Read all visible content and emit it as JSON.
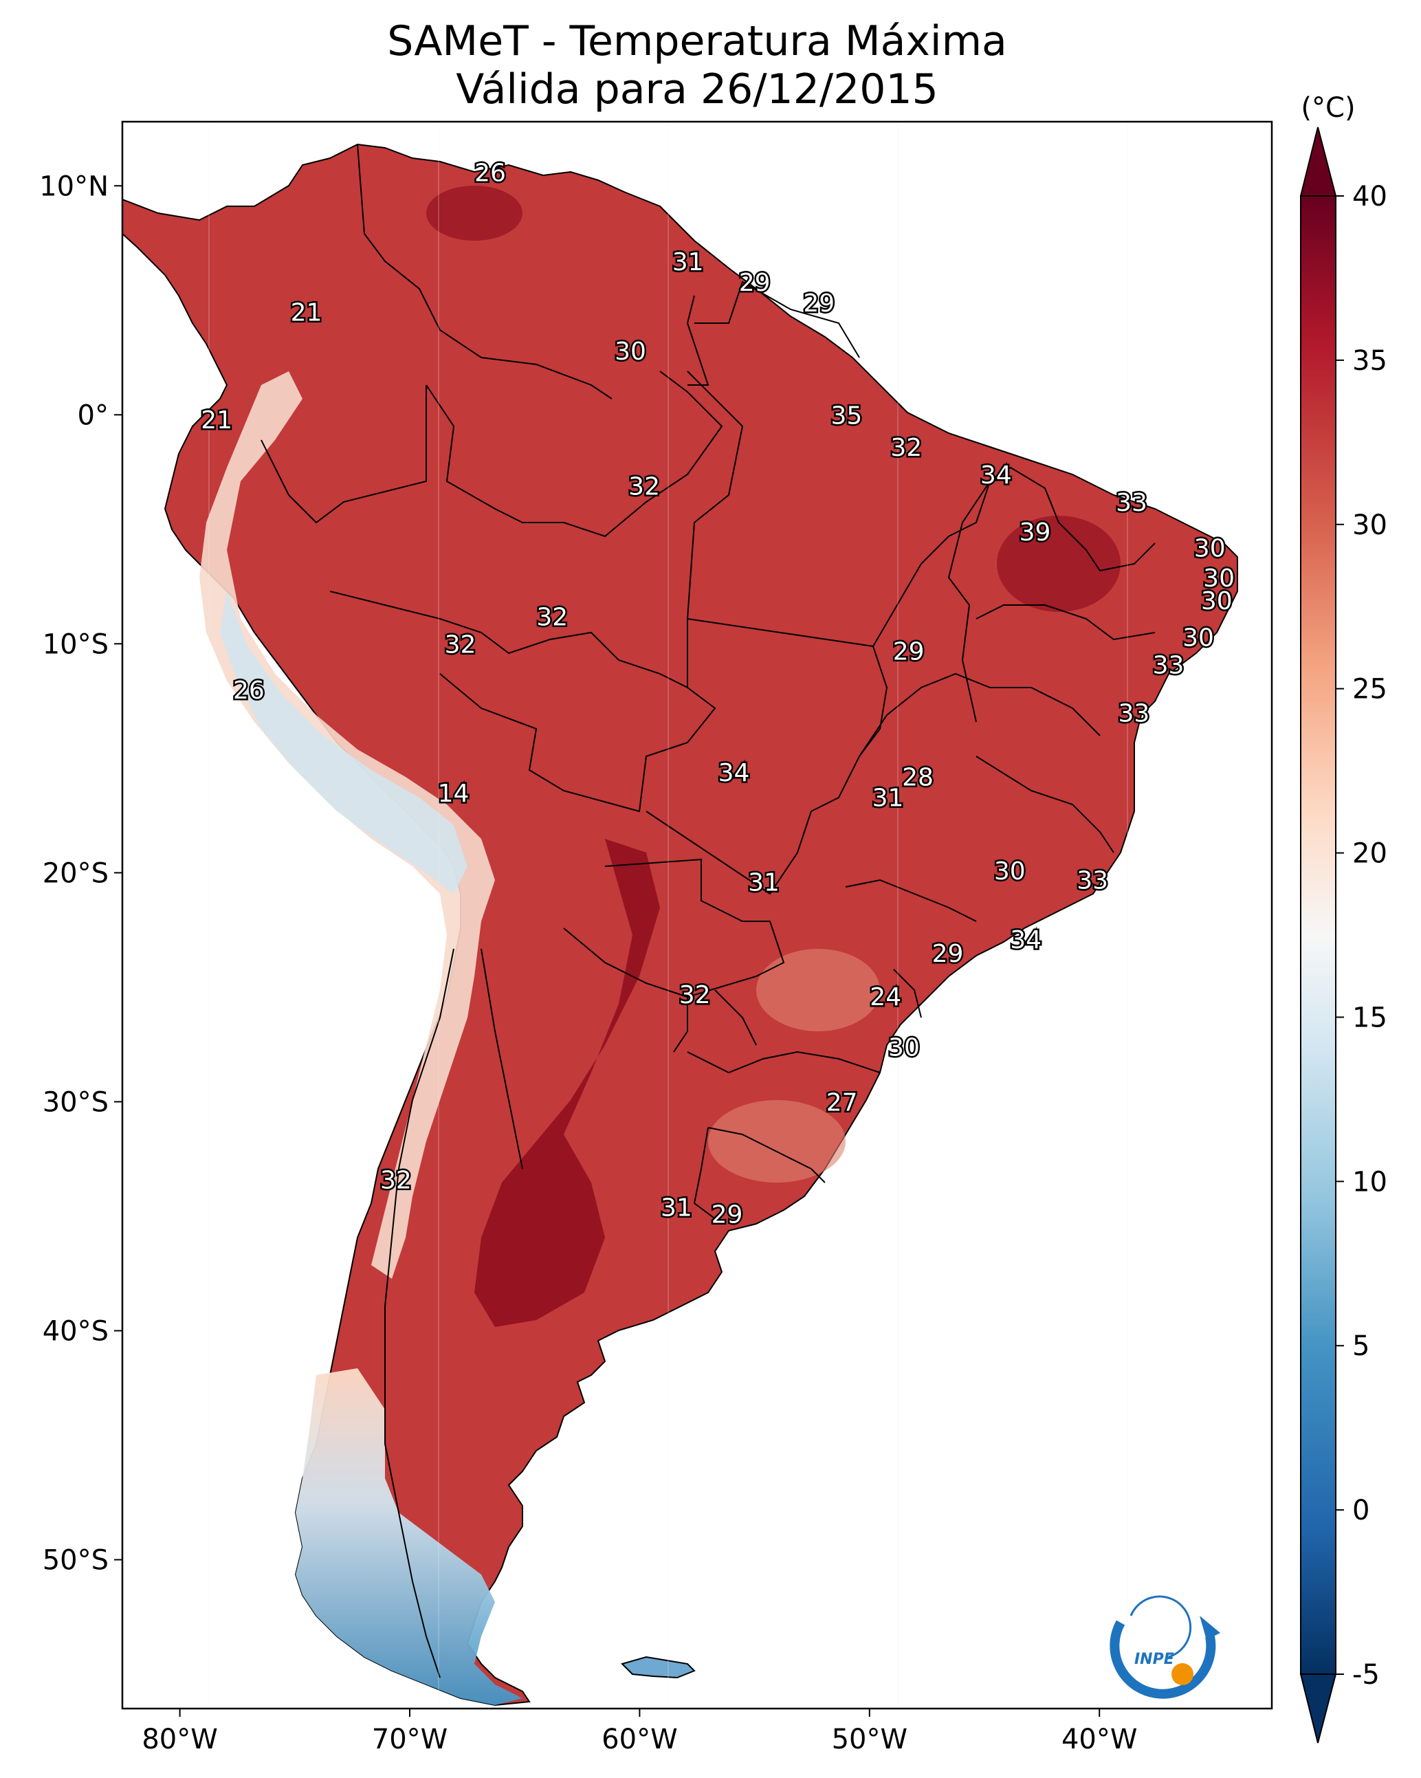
{
  "map": {
    "title_line1": "SAMeT - Temperatura Máxima",
    "title_line2": "Válida para 26/12/2015",
    "lon_labels": [
      "80°W",
      "70°W",
      "60°W",
      "50°W",
      "40°W"
    ],
    "lat_labels": [
      "10°N",
      "0°",
      "10°S",
      "20°S",
      "30°S",
      "40°S",
      "50°S"
    ],
    "extent": {
      "lon_min": -82.5,
      "lon_max": -32.5,
      "lat_min": -56.5,
      "lat_max": 12.8
    },
    "station_values": [
      {
        "lon": -66.5,
        "lat": 10.6,
        "value": "26"
      },
      {
        "lon": -74.5,
        "lat": 4.5,
        "value": "21"
      },
      {
        "lon": -57.9,
        "lat": 6.7,
        "value": "31"
      },
      {
        "lon": -55.0,
        "lat": 5.8,
        "value": "29"
      },
      {
        "lon": -52.2,
        "lat": 4.9,
        "value": "29"
      },
      {
        "lon": -60.4,
        "lat": 2.8,
        "value": "30"
      },
      {
        "lon": -78.4,
        "lat": -0.2,
        "value": "21"
      },
      {
        "lon": -51.0,
        "lat": 0.0,
        "value": "35"
      },
      {
        "lon": -48.4,
        "lat": -1.4,
        "value": "32"
      },
      {
        "lon": -59.8,
        "lat": -3.1,
        "value": "32"
      },
      {
        "lon": -44.5,
        "lat": -2.6,
        "value": "34"
      },
      {
        "lon": -38.6,
        "lat": -3.8,
        "value": "33"
      },
      {
        "lon": -42.8,
        "lat": -5.1,
        "value": "39"
      },
      {
        "lon": -35.2,
        "lat": -5.8,
        "value": "30"
      },
      {
        "lon": -34.8,
        "lat": -7.1,
        "value": "30"
      },
      {
        "lon": -34.9,
        "lat": -8.1,
        "value": "30"
      },
      {
        "lon": -63.8,
        "lat": -8.8,
        "value": "32"
      },
      {
        "lon": -67.8,
        "lat": -10.0,
        "value": "32"
      },
      {
        "lon": -48.3,
        "lat": -10.3,
        "value": "29"
      },
      {
        "lon": -35.7,
        "lat": -9.7,
        "value": "30"
      },
      {
        "lon": -37.0,
        "lat": -10.9,
        "value": "33"
      },
      {
        "lon": -38.5,
        "lat": -13.0,
        "value": "33"
      },
      {
        "lon": -77.0,
        "lat": -12.0,
        "value": "26"
      },
      {
        "lon": -55.9,
        "lat": -15.6,
        "value": "34"
      },
      {
        "lon": -47.9,
        "lat": -15.8,
        "value": "28"
      },
      {
        "lon": -49.2,
        "lat": -16.7,
        "value": "31"
      },
      {
        "lon": -68.1,
        "lat": -16.5,
        "value": "14"
      },
      {
        "lon": -43.9,
        "lat": -19.9,
        "value": "30"
      },
      {
        "lon": -40.3,
        "lat": -20.3,
        "value": "33"
      },
      {
        "lon": -54.6,
        "lat": -20.4,
        "value": "31"
      },
      {
        "lon": -43.2,
        "lat": -22.9,
        "value": "34"
      },
      {
        "lon": -46.6,
        "lat": -23.5,
        "value": "29"
      },
      {
        "lon": -57.6,
        "lat": -25.3,
        "value": "32"
      },
      {
        "lon": -49.3,
        "lat": -25.4,
        "value": "24"
      },
      {
        "lon": -48.5,
        "lat": -27.6,
        "value": "30"
      },
      {
        "lon": -51.2,
        "lat": -30.0,
        "value": "27"
      },
      {
        "lon": -70.6,
        "lat": -33.4,
        "value": "32"
      },
      {
        "lon": -58.4,
        "lat": -34.6,
        "value": "31"
      },
      {
        "lon": -56.2,
        "lat": -34.9,
        "value": "29"
      }
    ]
  },
  "colorbar": {
    "unit_label": "(°C)",
    "min": -5,
    "max": 40,
    "tick_labels": [
      "40",
      "35",
      "30",
      "25",
      "20",
      "15",
      "10",
      "5",
      "0",
      "-5"
    ],
    "colors": [
      "#053061",
      "#2166ac",
      "#4393c3",
      "#92c5de",
      "#d1e5f0",
      "#f7f7f7",
      "#fddbc7",
      "#f4a582",
      "#d6604d",
      "#b2182b",
      "#67001f"
    ]
  },
  "logo": {
    "text": "INPE",
    "colors": {
      "blue": "#1e73be",
      "orange": "#f39200"
    }
  }
}
